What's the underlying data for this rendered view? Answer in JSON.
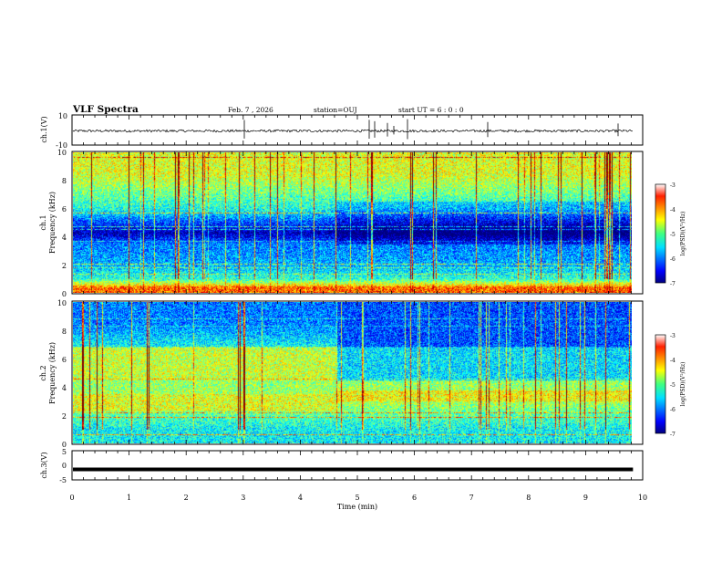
{
  "header": {
    "title": "VLF Spectra",
    "date": "Feb. 7 , 2026",
    "station": "station=OUJ",
    "start_ut": "start  UT =   6 : 0  : 0"
  },
  "colors": {
    "trace": "#000000",
    "background": "#ffffff"
  },
  "chart_data": [
    {
      "type": "line",
      "name": "ch1-waveform",
      "ylabel": "ch.1(V)",
      "ylim": [
        -10,
        10
      ],
      "yticks": [
        "10",
        "-10"
      ],
      "baseline": 0,
      "notes": "noise trace around 0 V with sparse spikes"
    },
    {
      "type": "heatmap",
      "name": "ch1-spectrogram",
      "ylabel_1": "ch.1",
      "ylabel_2": "Frequency  (kHz)",
      "ylim": [
        0,
        10
      ],
      "yticks": [
        "0",
        "2",
        "4",
        "6",
        "8",
        "10"
      ],
      "colorbar": {
        "label": "log(PSD)(V²/Hz)",
        "range": [
          -7,
          -3
        ],
        "ticks": [
          "-3",
          "-4",
          "-5",
          "-6",
          "-7"
        ]
      },
      "levels_khz": [
        {
          "f": 0.3,
          "v": -3.8
        },
        {
          "f": 1.0,
          "v": -5.3
        },
        {
          "f": 2.0,
          "v": -5.8
        },
        {
          "f": 3.5,
          "v": -6.0
        },
        {
          "f": 4.3,
          "v": -6.8
        },
        {
          "f": 6.0,
          "v": -5.4
        },
        {
          "f": 8.5,
          "v": -4.6
        }
      ]
    },
    {
      "type": "heatmap",
      "name": "ch2-spectrogram",
      "ylabel_1": "ch.2",
      "ylabel_2": "Frequency  (kHz)",
      "ylim": [
        0,
        10
      ],
      "yticks": [
        "0",
        "2",
        "4",
        "6",
        "8",
        "10"
      ],
      "colorbar": {
        "label": "log(PSD)(V²/Hz)",
        "range": [
          -7,
          -3
        ],
        "ticks": [
          "-3",
          "-4",
          "-5",
          "-6",
          "-7"
        ]
      },
      "transition_min": 4.7,
      "levels_khz": [
        {
          "f": 1.0,
          "v": -5.5
        },
        {
          "f": 3.0,
          "v": -4.8
        },
        {
          "f": 5.5,
          "v": -5.0
        },
        {
          "f": 8.5,
          "v": -6.0
        }
      ]
    },
    {
      "type": "line",
      "name": "ch3-waveform",
      "ylabel": "ch.3(V)",
      "ylim": [
        -5,
        5
      ],
      "yticks": [
        "5",
        "0",
        "-5"
      ],
      "baseline": -1.4,
      "notes": "flat thick trace near -1.4 V"
    }
  ],
  "xaxis": {
    "label": "Time  (min)",
    "range": [
      0,
      10
    ],
    "ticks": [
      "0",
      "1",
      "2",
      "3",
      "4",
      "5",
      "6",
      "7",
      "8",
      "9",
      "10"
    ],
    "data_end_min": 9.83
  }
}
